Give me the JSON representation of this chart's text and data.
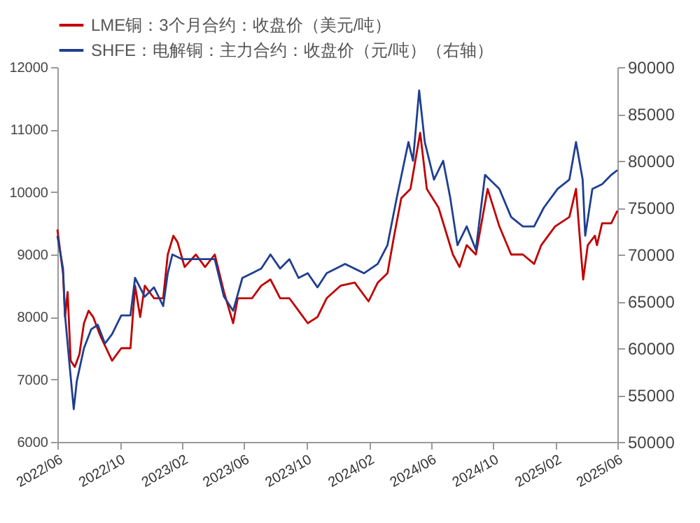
{
  "chart_data": {
    "type": "line",
    "legend": "top",
    "xlim": [
      "2022-06",
      "2025-06"
    ],
    "xticks": [
      {
        "value": "2022-06",
        "label": "2022/06"
      },
      {
        "value": "2022-10",
        "label": "2022/10"
      },
      {
        "value": "2023-02",
        "label": "2023/02"
      },
      {
        "value": "2023-06",
        "label": "2023/06"
      },
      {
        "value": "2023-10",
        "label": "2023/10"
      },
      {
        "value": "2024-02",
        "label": "2024/02"
      },
      {
        "value": "2024-06",
        "label": "2024/06"
      },
      {
        "value": "2024-10",
        "label": "2024/10"
      },
      {
        "value": "2025-02",
        "label": "2025/02"
      },
      {
        "value": "2025-06",
        "label": "2025/06"
      }
    ],
    "ylim": [
      6000,
      12000
    ],
    "yticks": [
      6000,
      7000,
      8000,
      9000,
      10000,
      11000,
      12000
    ],
    "y2lim": [
      50000,
      90000
    ],
    "y2ticks": [
      50000,
      55000,
      60000,
      65000,
      70000,
      75000,
      80000,
      85000,
      90000
    ],
    "series": [
      {
        "name": "LME铜：3个月合约：收盘价（美元/吨）",
        "color": "#c00000",
        "x": [
          "2022-06-01",
          "2022-06-12",
          "2022-06-16",
          "2022-06-21",
          "2022-06-27",
          "2022-07-05",
          "2022-07-14",
          "2022-07-23",
          "2022-08-01",
          "2022-08-10",
          "2022-08-24",
          "2022-09-16",
          "2022-10-04",
          "2022-10-22",
          "2022-10-31",
          "2022-11-10",
          "2022-11-19",
          "2022-12-07",
          "2022-12-25",
          "2023-01-03",
          "2023-01-14",
          "2023-01-22",
          "2023-02-05",
          "2023-02-27",
          "2023-03-17",
          "2023-04-05",
          "2023-04-23",
          "2023-05-11",
          "2023-05-20",
          "2023-06-17",
          "2023-07-05",
          "2023-07-23",
          "2023-08-11",
          "2023-08-29",
          "2023-09-16",
          "2023-10-04",
          "2023-10-23",
          "2023-11-10",
          "2023-12-07",
          "2024-01-04",
          "2024-01-31",
          "2024-02-18",
          "2024-03-08",
          "2024-03-21",
          "2024-04-04",
          "2024-04-22",
          "2024-05-11",
          "2024-05-24",
          "2024-06-16",
          "2024-07-14",
          "2024-07-27",
          "2024-08-10",
          "2024-08-28",
          "2024-09-20",
          "2024-10-13",
          "2024-11-05",
          "2024-11-28",
          "2024-12-20",
          "2025-01-03",
          "2025-01-30",
          "2025-02-27",
          "2025-03-12",
          "2025-03-22",
          "2025-03-26",
          "2025-04-04",
          "2025-04-18",
          "2025-04-22",
          "2025-05-02",
          "2025-05-20",
          "2025-06-01"
        ],
        "values": [
          9400,
          8700,
          8000,
          8400,
          7300,
          7200,
          7400,
          7900,
          8100,
          8000,
          7700,
          7300,
          7500,
          7500,
          8500,
          8000,
          8500,
          8300,
          8300,
          9000,
          9300,
          9200,
          8800,
          9000,
          8800,
          9000,
          8400,
          7900,
          8300,
          8300,
          8500,
          8600,
          8300,
          8300,
          8100,
          7900,
          8000,
          8300,
          8500,
          8550,
          8250,
          8550,
          8700,
          9300,
          9900,
          10050,
          10950,
          10050,
          9750,
          9000,
          8800,
          9150,
          9000,
          10050,
          9450,
          9000,
          9000,
          8850,
          9150,
          9450,
          9600,
          10050,
          9000,
          8600,
          9150,
          9300,
          9150,
          9500,
          9500,
          9700
        ]
      },
      {
        "name": "SHFE：电解铜：主力合约：收盘价（元/吨）（右轴）",
        "color": "#1f3f8f",
        "axis": "y2",
        "x": [
          "2022-06-01",
          "2022-06-12",
          "2022-06-16",
          "2022-06-26",
          "2022-07-03",
          "2022-07-09",
          "2022-07-23",
          "2022-08-06",
          "2022-08-19",
          "2022-09-02",
          "2022-09-16",
          "2022-10-04",
          "2022-10-22",
          "2022-10-31",
          "2022-11-19",
          "2022-12-07",
          "2022-12-25",
          "2023-01-03",
          "2023-01-12",
          "2023-01-31",
          "2023-02-18",
          "2023-03-17",
          "2023-04-05",
          "2023-04-23",
          "2023-05-11",
          "2023-05-29",
          "2023-06-17",
          "2023-07-05",
          "2023-07-23",
          "2023-08-11",
          "2023-08-29",
          "2023-09-16",
          "2023-10-04",
          "2023-10-23",
          "2023-11-10",
          "2023-12-16",
          "2024-01-22",
          "2024-02-18",
          "2024-03-08",
          "2024-03-26",
          "2024-04-18",
          "2024-04-27",
          "2024-05-09",
          "2024-05-20",
          "2024-06-07",
          "2024-06-25",
          "2024-07-09",
          "2024-07-23",
          "2024-08-10",
          "2024-08-28",
          "2024-09-15",
          "2024-10-13",
          "2024-11-05",
          "2024-11-28",
          "2024-12-20",
          "2025-01-08",
          "2025-02-04",
          "2025-02-27",
          "2025-03-12",
          "2025-03-25",
          "2025-03-30",
          "2025-04-13",
          "2025-05-02",
          "2025-05-20",
          "2025-06-01"
        ],
        "values": [
          72000,
          68500,
          63500,
          57500,
          53500,
          56500,
          60000,
          62000,
          62500,
          60500,
          61500,
          63500,
          63500,
          67500,
          65500,
          66500,
          64500,
          68000,
          70000,
          69500,
          69500,
          69500,
          69500,
          65500,
          64000,
          67500,
          68000,
          68500,
          70000,
          68500,
          69500,
          67500,
          68000,
          66500,
          68000,
          69000,
          68000,
          69000,
          71000,
          76000,
          82000,
          80000,
          87500,
          82000,
          78000,
          80000,
          76000,
          71000,
          73000,
          70500,
          78500,
          77000,
          74000,
          73000,
          73000,
          75000,
          77000,
          78000,
          82000,
          78000,
          72000,
          77000,
          77500,
          78500,
          79000
        ]
      }
    ]
  }
}
